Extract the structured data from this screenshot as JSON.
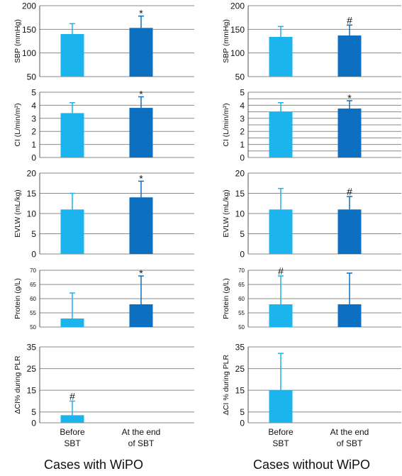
{
  "colors": {
    "before": "#1bb4ec",
    "after": "#0c6fc0",
    "error": "#1bb4ec",
    "grid": "#8a8a8a"
  },
  "group_titles": [
    "Cases with WiPO",
    "Cases without WiPO"
  ],
  "chart_data": [
    {
      "type": "bar",
      "group": "Cases with WiPO",
      "ylabel": "SBP (mmHg)",
      "categories": [
        "Before SBT",
        "At the end of SBT"
      ],
      "values": [
        140,
        153
      ],
      "errors": [
        22,
        25
      ],
      "ylim": [
        50,
        200
      ],
      "yticks": [
        50,
        100,
        150,
        200
      ],
      "marks": [
        "",
        "*"
      ],
      "grid": true
    },
    {
      "type": "bar",
      "group": "Cases with WiPO",
      "ylabel": "CI (L/min/m²)",
      "categories": [
        "Before SBT",
        "At the end of SBT"
      ],
      "values": [
        3.4,
        3.8
      ],
      "errors": [
        0.8,
        0.85
      ],
      "ylim": [
        0,
        5
      ],
      "yticks": [
        0,
        1,
        2,
        3,
        4,
        5
      ],
      "marks": [
        "",
        "*"
      ],
      "grid": true
    },
    {
      "type": "bar",
      "group": "Cases with WiPO",
      "ylabel": "EVLW (mL/kg)",
      "categories": [
        "Before SBT",
        "At the end of SBT"
      ],
      "values": [
        11,
        14
      ],
      "errors": [
        4,
        4
      ],
      "ylim": [
        0,
        20
      ],
      "yticks": [
        0,
        5,
        10,
        15,
        20
      ],
      "marks": [
        "",
        "*"
      ],
      "grid": true
    },
    {
      "type": "bar",
      "group": "Cases with WiPO",
      "ylabel": "Protein (g/L)",
      "categories": [
        "Before SBT",
        "At the end of SBT"
      ],
      "values": [
        53,
        58
      ],
      "errors": [
        9,
        10
      ],
      "ylim": [
        50,
        70
      ],
      "yticks": [
        50,
        55,
        60,
        65,
        70
      ],
      "marks": [
        "",
        "*"
      ],
      "grid": true
    },
    {
      "type": "bar",
      "group": "Cases with WiPO",
      "ylabel": "ΔCI% during PLR",
      "categories": [
        "Before SBT",
        "At the end of SBT"
      ],
      "values": [
        3.5,
        null
      ],
      "errors": [
        6.5,
        null
      ],
      "ylim": [
        0,
        35
      ],
      "yticks": [
        0,
        5,
        15,
        25,
        35
      ],
      "marks": [
        "#",
        ""
      ],
      "grid": true
    },
    {
      "type": "bar",
      "group": "Cases without WiPO",
      "ylabel": "SBP (mmHg)",
      "categories": [
        "Before SBT",
        "At the end of SBT"
      ],
      "values": [
        134,
        137
      ],
      "errors": [
        22,
        22
      ],
      "ylim": [
        50,
        200
      ],
      "yticks": [
        50,
        100,
        150,
        200
      ],
      "marks": [
        "",
        "#"
      ],
      "grid": true
    },
    {
      "type": "bar",
      "group": "Cases without WiPO",
      "ylabel": "CI (L/min/m²)",
      "categories": [
        "Before SBT",
        "At the end of SBT"
      ],
      "values": [
        3.5,
        3.75
      ],
      "errors": [
        0.7,
        0.6
      ],
      "ylim": [
        0,
        5
      ],
      "yticks": [
        0,
        0.5,
        1,
        1.5,
        2,
        2.5,
        3,
        3.5,
        4,
        4.5,
        5
      ],
      "ytick_labels": [
        "0",
        "",
        "1",
        "",
        "2",
        "",
        "3",
        "",
        "4",
        "",
        "5"
      ],
      "marks": [
        "",
        "*"
      ],
      "grid": true
    },
    {
      "type": "bar",
      "group": "Cases without WiPO",
      "ylabel": "EVLW (mL/kg)",
      "categories": [
        "Before SBT",
        "At the end of SBT"
      ],
      "values": [
        11,
        11
      ],
      "errors": [
        5.2,
        3.2
      ],
      "ylim": [
        0,
        20
      ],
      "yticks": [
        0,
        5,
        10,
        15,
        20
      ],
      "marks": [
        "",
        "#"
      ],
      "grid": true
    },
    {
      "type": "bar",
      "group": "Cases without WiPO",
      "ylabel": "Protein (g/L)",
      "categories": [
        "Before SBT",
        "At the end of SBT"
      ],
      "values": [
        58,
        58
      ],
      "errors": [
        10,
        11
      ],
      "ylim": [
        50,
        70
      ],
      "yticks": [
        50,
        55,
        60,
        65,
        70
      ],
      "marks": [
        "#",
        ""
      ],
      "grid": true
    },
    {
      "type": "bar",
      "group": "Cases without WiPO",
      "ylabel": "ΔCI % during PLR",
      "categories": [
        "Before SBT",
        "At the end of SBT"
      ],
      "values": [
        15,
        null
      ],
      "errors": [
        17,
        null
      ],
      "ylim": [
        0,
        35
      ],
      "yticks": [
        0,
        5,
        15,
        25,
        35
      ],
      "marks": [
        "",
        ""
      ],
      "grid": true
    }
  ],
  "category_labels": [
    [
      "Before",
      "SBT"
    ],
    [
      "At the end",
      "of SBT"
    ]
  ]
}
